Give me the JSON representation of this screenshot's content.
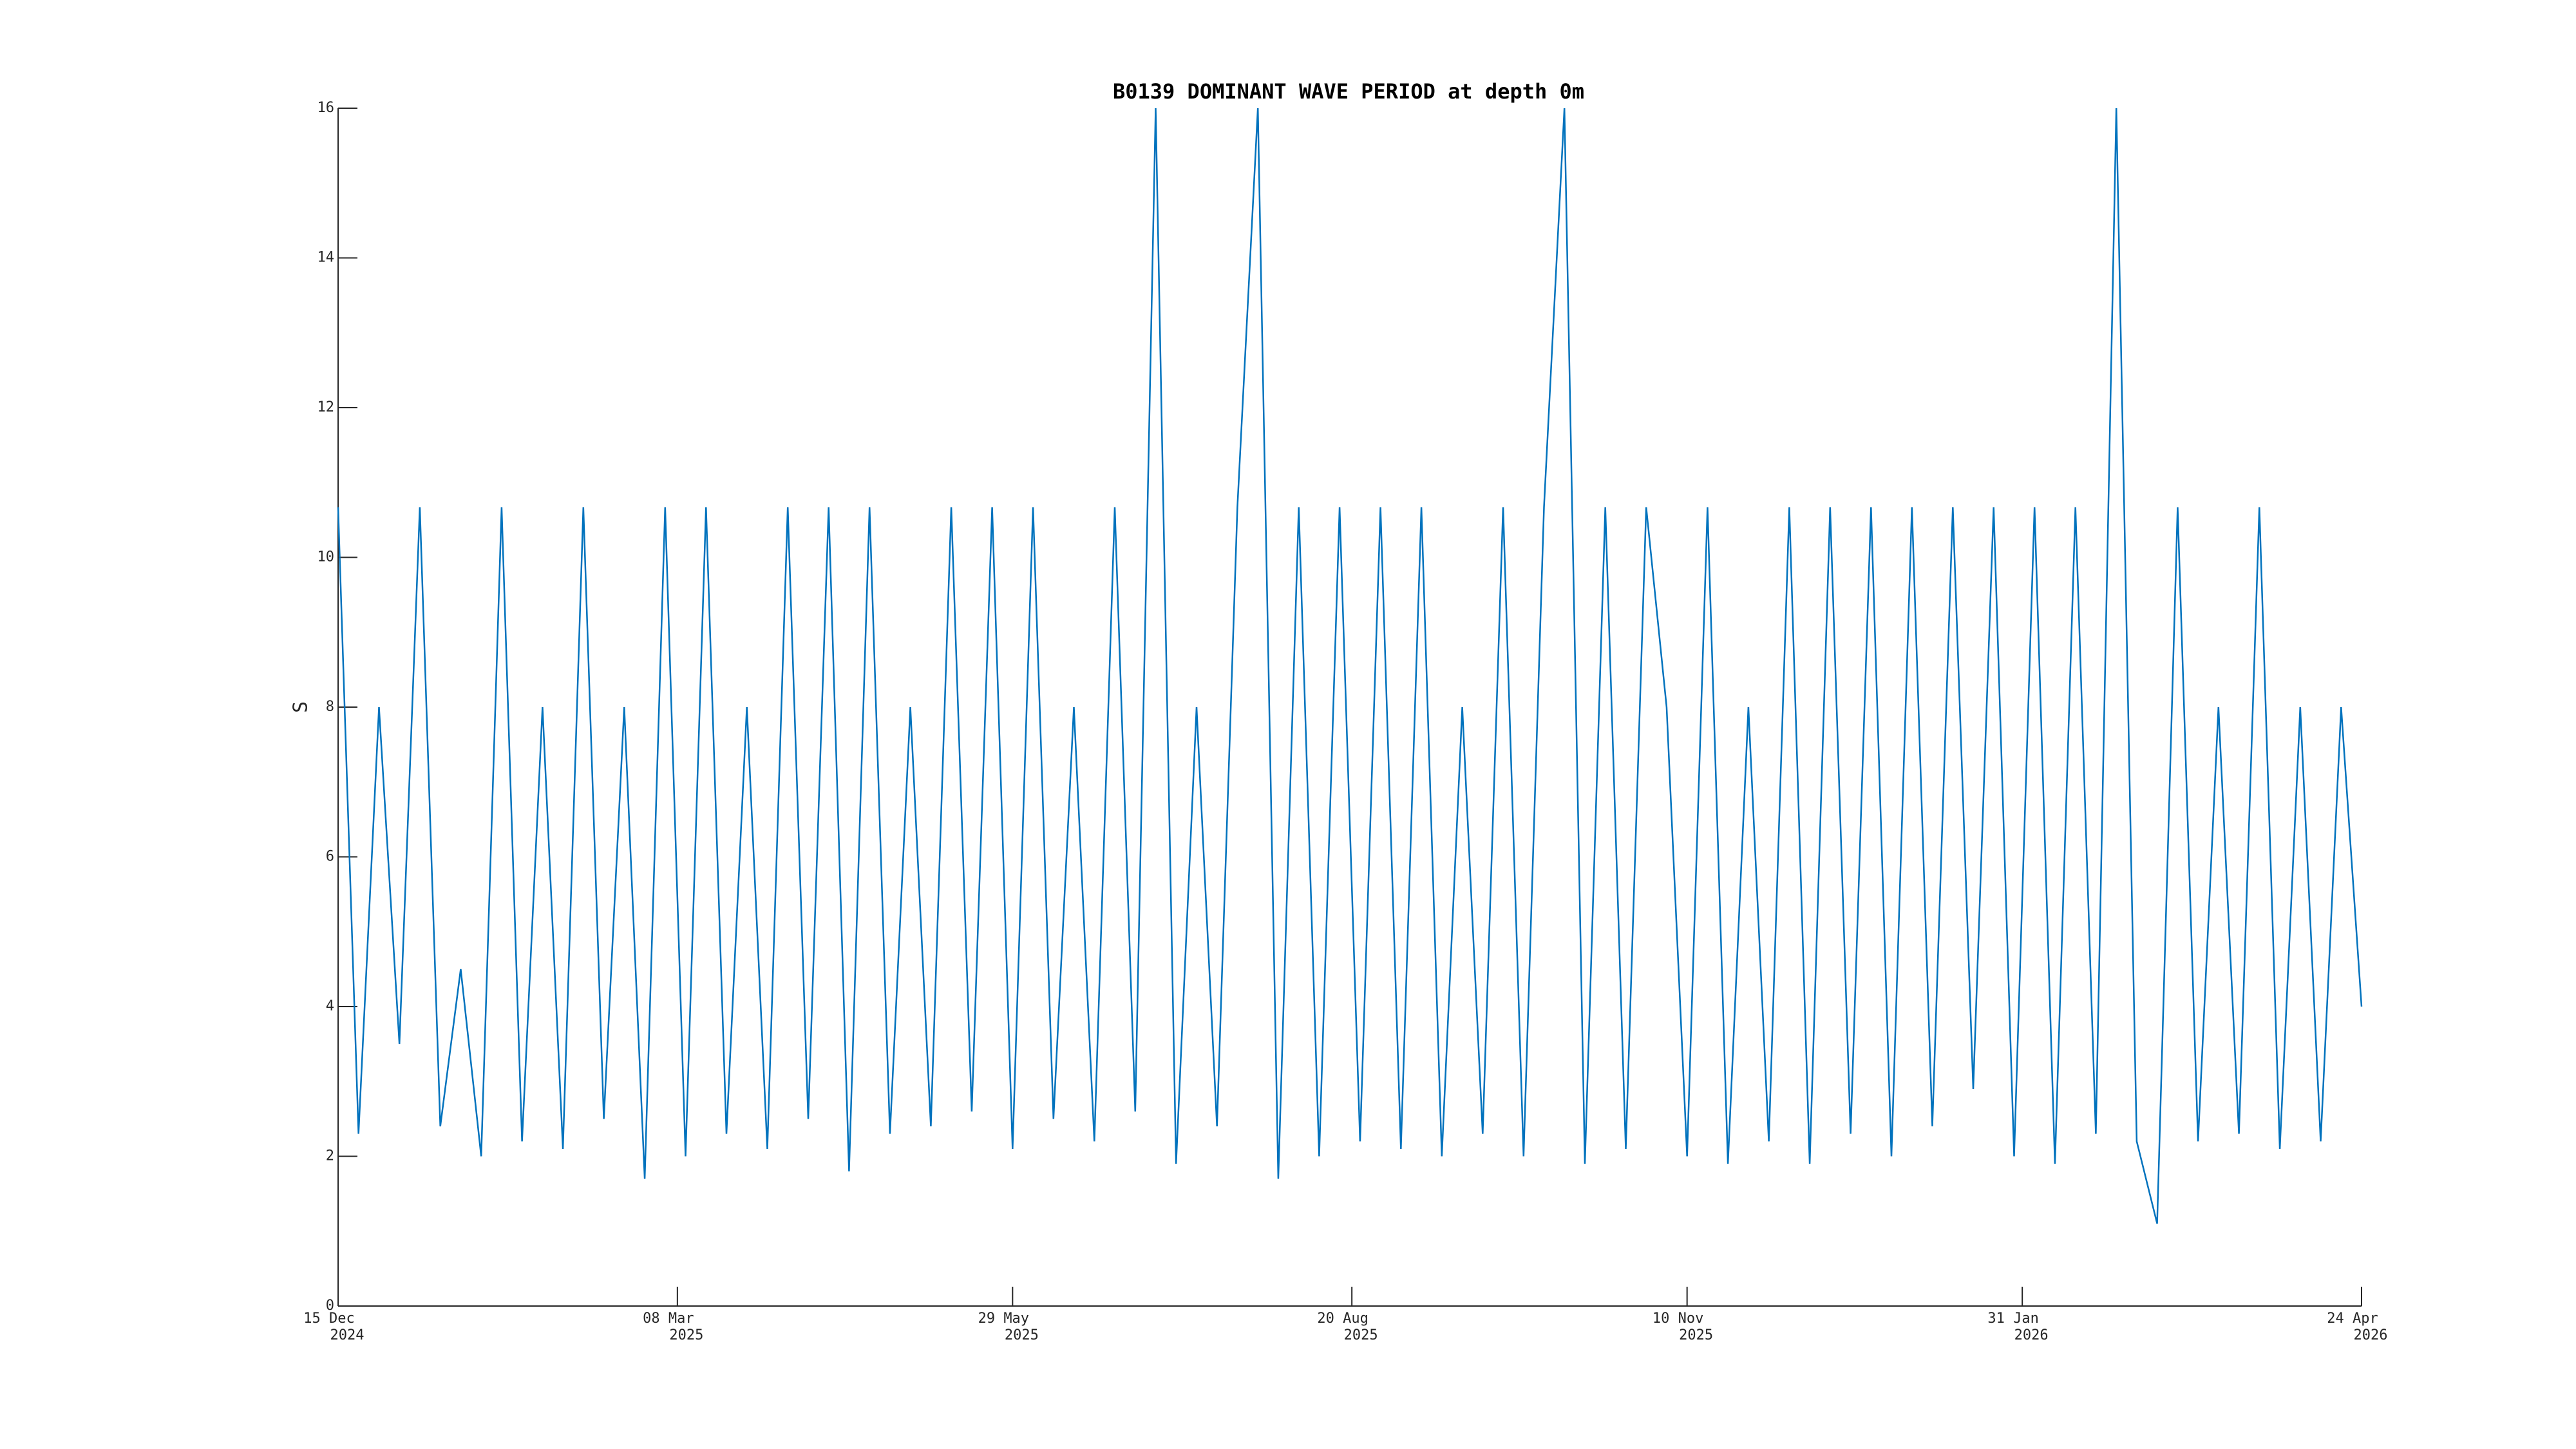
{
  "chart_data": {
    "type": "line",
    "title": "B0139 DOMINANT WAVE PERIOD at depth 0m",
    "y_label": "S",
    "color": "#0072bd",
    "grid": false,
    "xlim": [
      "2024-12-15",
      "2026-04-24"
    ],
    "xticks": [
      {
        "value": "2024-12-15",
        "label": [
          "15 Dec",
          "2024"
        ]
      },
      {
        "value": "2025-03-08",
        "label": [
          "08 Mar",
          "2025"
        ]
      },
      {
        "value": "2025-05-29",
        "label": [
          "29 May",
          "2025"
        ]
      },
      {
        "value": "2025-08-20",
        "label": [
          "20 Aug",
          "2025"
        ]
      },
      {
        "value": "2025-11-10",
        "label": [
          "10 Nov",
          "2025"
        ]
      },
      {
        "value": "2026-01-31",
        "label": [
          "31 Jan",
          "2026"
        ]
      },
      {
        "value": "2026-04-24",
        "label": [
          "24 Apr",
          "2026"
        ]
      }
    ],
    "ylim": [
      0,
      16
    ],
    "yticks": [
      0,
      2,
      4,
      6,
      8,
      10,
      12,
      14,
      16
    ],
    "x": [
      "2024-12-15",
      "2024-12-20",
      "2024-12-25",
      "2024-12-30",
      "2025-01-04",
      "2025-01-09",
      "2025-01-14",
      "2025-01-19",
      "2025-01-24",
      "2025-01-29",
      "2025-02-03",
      "2025-02-08",
      "2025-02-13",
      "2025-02-18",
      "2025-02-23",
      "2025-02-28",
      "2025-03-05",
      "2025-03-10",
      "2025-03-15",
      "2025-03-20",
      "2025-03-25",
      "2025-03-30",
      "2025-04-04",
      "2025-04-09",
      "2025-04-14",
      "2025-04-19",
      "2025-04-24",
      "2025-04-29",
      "2025-05-04",
      "2025-05-09",
      "2025-05-14",
      "2025-05-19",
      "2025-05-24",
      "2025-05-29",
      "2025-06-03",
      "2025-06-08",
      "2025-06-13",
      "2025-06-18",
      "2025-06-23",
      "2025-06-28",
      "2025-07-03",
      "2025-07-08",
      "2025-07-13",
      "2025-07-18",
      "2025-07-23",
      "2025-07-28",
      "2025-08-02",
      "2025-08-07",
      "2025-08-12",
      "2025-08-17",
      "2025-08-22",
      "2025-08-27",
      "2025-09-01",
      "2025-09-06",
      "2025-09-11",
      "2025-09-16",
      "2025-09-21",
      "2025-09-26",
      "2025-10-01",
      "2025-10-06",
      "2025-10-11",
      "2025-10-16",
      "2025-10-21",
      "2025-10-26",
      "2025-10-31",
      "2025-11-05",
      "2025-11-10",
      "2025-11-15",
      "2025-11-20",
      "2025-11-25",
      "2025-11-30",
      "2025-12-05",
      "2025-12-10",
      "2025-12-15",
      "2025-12-20",
      "2025-12-25",
      "2025-12-30",
      "2026-01-04",
      "2026-01-09",
      "2026-01-14",
      "2026-01-19",
      "2026-01-24",
      "2026-01-29",
      "2026-02-03",
      "2026-02-08",
      "2026-02-13",
      "2026-02-18",
      "2026-02-23",
      "2026-02-28",
      "2026-03-05",
      "2026-03-10",
      "2026-03-15",
      "2026-03-20",
      "2026-03-25",
      "2026-03-30",
      "2026-04-04",
      "2026-04-09",
      "2026-04-14",
      "2026-04-19",
      "2026-04-24"
    ],
    "values": [
      10.67,
      2.3,
      8,
      3.5,
      10.67,
      2.4,
      4.5,
      2.0,
      10.67,
      2.2,
      8,
      2.1,
      10.67,
      2.5,
      8,
      1.7,
      10.67,
      2.0,
      10.67,
      2.3,
      8,
      2.1,
      10.67,
      2.5,
      10.67,
      1.8,
      10.67,
      2.3,
      8,
      2.4,
      10.67,
      2.6,
      10.67,
      2.1,
      10.67,
      2.5,
      8,
      2.2,
      10.67,
      2.6,
      16,
      1.9,
      8,
      2.4,
      10.67,
      16,
      1.7,
      10.67,
      2.0,
      10.67,
      2.2,
      10.67,
      2.1,
      10.67,
      2.0,
      8,
      2.3,
      10.67,
      2.0,
      10.67,
      16,
      1.9,
      10.67,
      2.1,
      10.67,
      8,
      2.0,
      10.67,
      1.9,
      8,
      2.2,
      10.67,
      1.9,
      10.67,
      2.3,
      10.67,
      2.0,
      10.67,
      2.4,
      10.67,
      2.9,
      10.67,
      2.0,
      10.67,
      1.9,
      10.67,
      2.3,
      16,
      2.2,
      1.1,
      10.67,
      2.2,
      8,
      2.3,
      10.67,
      2.1,
      8,
      2.2,
      8,
      4
    ]
  }
}
